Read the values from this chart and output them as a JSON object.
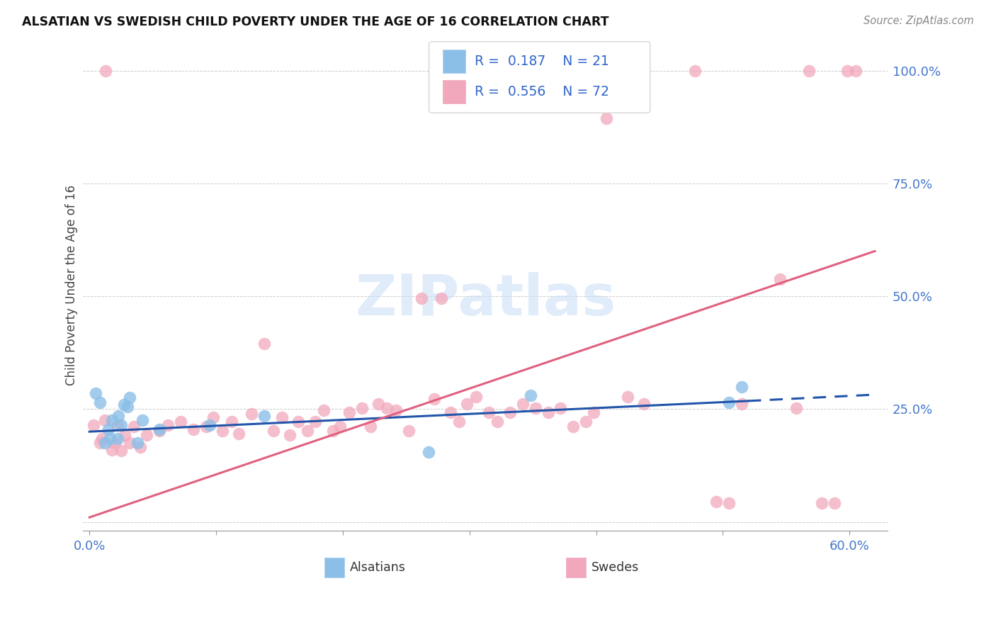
{
  "title": "ALSATIAN VS SWEDISH CHILD POVERTY UNDER THE AGE OF 16 CORRELATION CHART",
  "source": "Source: ZipAtlas.com",
  "ylabel_label": "Child Poverty Under the Age of 16",
  "xlim": [
    -0.005,
    0.63
  ],
  "ylim": [
    -0.02,
    1.07
  ],
  "background_color": "#ffffff",
  "alsatian_color": "#8bbfe8",
  "swedish_color": "#f2a8bc",
  "alsatian_line_color": "#2255aa",
  "swedish_line_color": "#e06080",
  "alsatian_points_x": [
    0.005,
    0.008,
    0.012,
    0.015,
    0.016,
    0.018,
    0.022,
    0.023,
    0.025,
    0.027,
    0.03,
    0.032,
    0.038,
    0.042,
    0.055,
    0.095,
    0.138,
    0.268,
    0.348,
    0.505,
    0.515
  ],
  "alsatian_points_y": [
    0.285,
    0.265,
    0.175,
    0.205,
    0.185,
    0.225,
    0.185,
    0.235,
    0.215,
    0.26,
    0.255,
    0.275,
    0.175,
    0.225,
    0.205,
    0.215,
    0.235,
    0.155,
    0.28,
    0.265,
    0.3
  ],
  "swedish_points_x": [
    0.003,
    0.008,
    0.01,
    0.012,
    0.013,
    0.018,
    0.02,
    0.022,
    0.025,
    0.028,
    0.032,
    0.035,
    0.04,
    0.045,
    0.055,
    0.062,
    0.072,
    0.082,
    0.092,
    0.098,
    0.105,
    0.112,
    0.118,
    0.128,
    0.138,
    0.145,
    0.152,
    0.158,
    0.165,
    0.172,
    0.178,
    0.185,
    0.192,
    0.198,
    0.205,
    0.215,
    0.222,
    0.228,
    0.235,
    0.242,
    0.252,
    0.262,
    0.272,
    0.278,
    0.285,
    0.292,
    0.298,
    0.305,
    0.315,
    0.322,
    0.332,
    0.342,
    0.352,
    0.362,
    0.372,
    0.382,
    0.392,
    0.398,
    0.408,
    0.425,
    0.438,
    0.478,
    0.495,
    0.505,
    0.515,
    0.545,
    0.558,
    0.568,
    0.578,
    0.588,
    0.598,
    0.605
  ],
  "swedish_points_y": [
    0.215,
    0.175,
    0.185,
    0.225,
    1.0,
    0.16,
    0.175,
    0.215,
    0.158,
    0.192,
    0.175,
    0.212,
    0.165,
    0.192,
    0.202,
    0.215,
    0.222,
    0.205,
    0.212,
    0.232,
    0.202,
    0.222,
    0.195,
    0.24,
    0.395,
    0.202,
    0.232,
    0.192,
    0.222,
    0.202,
    0.222,
    0.248,
    0.202,
    0.212,
    0.242,
    0.252,
    0.212,
    0.262,
    0.252,
    0.248,
    0.202,
    0.495,
    0.272,
    0.495,
    0.242,
    0.222,
    0.262,
    0.278,
    0.242,
    0.222,
    0.242,
    0.262,
    0.252,
    0.242,
    0.252,
    0.212,
    0.222,
    0.242,
    0.895,
    0.278,
    0.262,
    1.0,
    0.045,
    0.042,
    0.262,
    0.538,
    0.252,
    1.0,
    0.042,
    0.042,
    1.0,
    1.0
  ],
  "als_trend_x0": 0.0,
  "als_trend_x1": 0.52,
  "als_trend_x2": 0.62,
  "als_trend_y0": 0.2,
  "als_trend_y1": 0.268,
  "als_trend_y2": 0.282,
  "swe_trend_x0": 0.0,
  "swe_trend_x2": 0.62,
  "swe_trend_y0": 0.01,
  "swe_trend_y2": 0.6,
  "grid_color": "#cccccc",
  "tick_color": "#4477cc",
  "x_tick_positions": [
    0.0,
    0.1,
    0.2,
    0.3,
    0.4,
    0.5,
    0.6
  ],
  "x_tick_labels": [
    "0.0%",
    "",
    "",
    "",
    "",
    "",
    "60.0%"
  ],
  "y_tick_positions": [
    0.0,
    0.25,
    0.5,
    0.75,
    1.0
  ],
  "y_tick_labels_right": [
    "",
    "25.0%",
    "50.0%",
    "75.0%",
    "100.0%"
  ]
}
